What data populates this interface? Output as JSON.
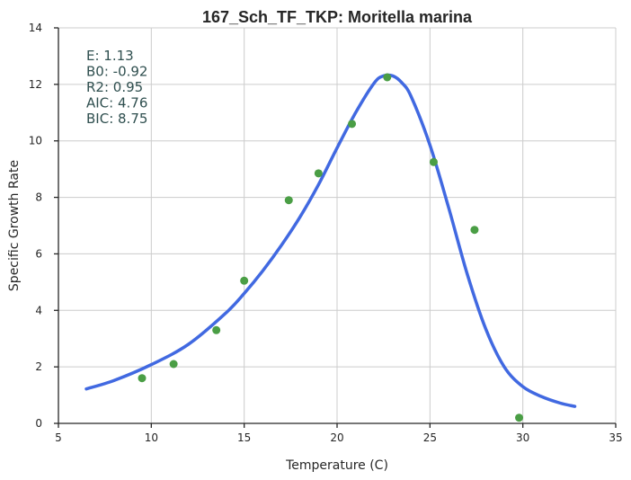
{
  "chart_data": {
    "type": "scatter",
    "title": "167_Sch_TF_TKP: Moritella marina",
    "xlabel": "Temperature (C)",
    "ylabel": "Specific Growth Rate",
    "xlim": [
      5,
      35
    ],
    "ylim": [
      0,
      14
    ],
    "xticks": [
      5,
      10,
      15,
      20,
      25,
      30,
      35
    ],
    "yticks": [
      0,
      2,
      4,
      6,
      8,
      10,
      12,
      14
    ],
    "grid": true,
    "points": {
      "color": "#4a9e45",
      "x": [
        9.5,
        11.2,
        13.5,
        15.0,
        17.4,
        19.0,
        20.8,
        22.7,
        25.2,
        27.4,
        29.8
      ],
      "y": [
        1.6,
        2.1,
        3.3,
        5.05,
        7.9,
        8.85,
        10.6,
        12.25,
        9.25,
        6.85,
        0.2
      ]
    },
    "fit_curve": {
      "color": "#4169e1",
      "x": [
        6.5,
        8,
        10,
        12,
        14,
        15,
        16,
        17,
        18,
        19,
        20,
        21,
        22,
        22.5,
        23,
        23.5,
        24,
        25,
        26,
        27,
        28,
        29,
        30,
        31,
        32,
        32.8
      ],
      "y": [
        1.22,
        1.52,
        2.08,
        2.8,
        3.9,
        4.6,
        5.4,
        6.3,
        7.3,
        8.45,
        9.75,
        11.0,
        12.05,
        12.3,
        12.3,
        12.05,
        11.55,
        9.85,
        7.65,
        5.3,
        3.35,
        2.0,
        1.3,
        0.95,
        0.72,
        0.6
      ]
    },
    "annotations": [
      "E:  1.13",
      "B0:  -0.92",
      "R2:  0.95",
      "AIC: 4.76",
      "BIC: 8.75"
    ]
  }
}
